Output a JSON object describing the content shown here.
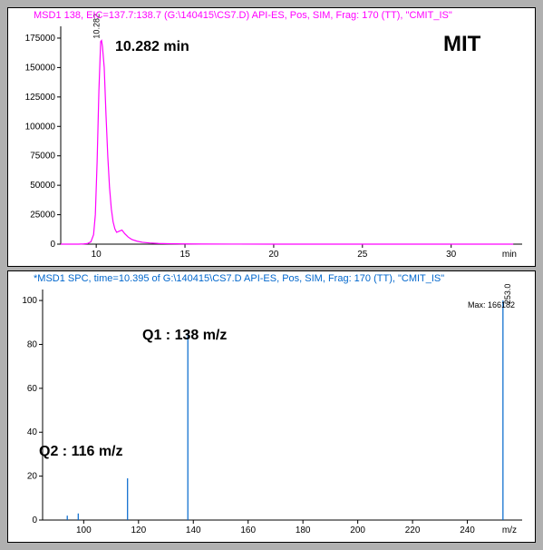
{
  "top_panel": {
    "title": "MSD1 138, EIC=137.7:138.7 (G:\\140415\\CS7.D)   API-ES, Pos, SIM, Frag: 170 (TT), \"CMIT_IS\"",
    "title_color": "#ff00ff",
    "compound_label": "MIT",
    "retention_label": "10.282 min",
    "peak_label": "10.282",
    "series_color": "#ff00ff",
    "background_color": "#ffffff",
    "xaxis": {
      "min": 8,
      "max": 34,
      "label": "min",
      "ticks": [
        10,
        15,
        20,
        25,
        30
      ]
    },
    "yaxis": {
      "min": 0,
      "max": 185000,
      "ticks": [
        0,
        25000,
        50000,
        75000,
        100000,
        125000,
        150000,
        175000
      ]
    },
    "chromatogram": [
      [
        8.0,
        0
      ],
      [
        8.2,
        0
      ],
      [
        8.5,
        0
      ],
      [
        8.7,
        0
      ],
      [
        9.0,
        0
      ],
      [
        9.3,
        200
      ],
      [
        9.5,
        500
      ],
      [
        9.7,
        2000
      ],
      [
        9.85,
        8000
      ],
      [
        9.95,
        25000
      ],
      [
        10.05,
        70000
      ],
      [
        10.15,
        130000
      ],
      [
        10.25,
        172000
      ],
      [
        10.3,
        173000
      ],
      [
        10.35,
        168000
      ],
      [
        10.45,
        150000
      ],
      [
        10.55,
        110000
      ],
      [
        10.65,
        75000
      ],
      [
        10.75,
        48000
      ],
      [
        10.85,
        30000
      ],
      [
        10.95,
        19000
      ],
      [
        11.05,
        13000
      ],
      [
        11.15,
        10000
      ],
      [
        11.3,
        11000
      ],
      [
        11.45,
        12000
      ],
      [
        11.6,
        9000
      ],
      [
        11.8,
        6000
      ],
      [
        12.0,
        4000
      ],
      [
        12.3,
        2500
      ],
      [
        12.6,
        1600
      ],
      [
        13.0,
        1000
      ],
      [
        13.5,
        600
      ],
      [
        14.0,
        400
      ],
      [
        15.0,
        200
      ],
      [
        16.0,
        100
      ],
      [
        18.0,
        50
      ],
      [
        20.0,
        0
      ],
      [
        25.0,
        0
      ],
      [
        30.0,
        0
      ],
      [
        33.5,
        0
      ]
    ]
  },
  "bottom_panel": {
    "title": "*MSD1 SPC, time=10.395 of G:\\140415\\CS7.D   API-ES, Pos, SIM, Frag: 170 (TT), \"CMIT_IS\"",
    "title_color": "#0066cc",
    "max_label": "Max: 166182",
    "q1_label": "Q1 : 138 m/z",
    "q2_label": "Q2 : 116 m/z",
    "peak_right_label": "253.0",
    "series_color": "#0066cc",
    "background_color": "#ffffff",
    "xaxis": {
      "min": 85,
      "max": 260,
      "label": "m/z",
      "ticks": [
        100,
        120,
        140,
        160,
        180,
        200,
        220,
        240
      ]
    },
    "yaxis": {
      "min": 0,
      "max": 105,
      "ticks": [
        0,
        20,
        40,
        60,
        80,
        100
      ]
    },
    "spectrum": [
      {
        "mz": 94,
        "intensity": 2
      },
      {
        "mz": 98,
        "intensity": 3
      },
      {
        "mz": 116,
        "intensity": 19
      },
      {
        "mz": 138,
        "intensity": 85
      },
      {
        "mz": 253,
        "intensity": 100
      }
    ]
  }
}
